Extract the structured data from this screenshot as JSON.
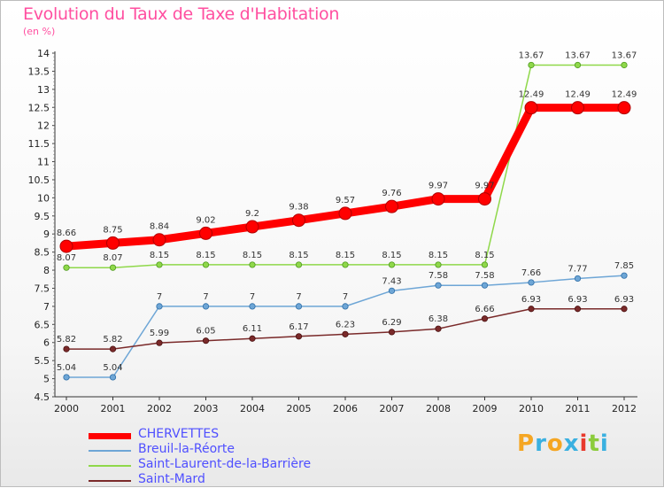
{
  "chart_data": {
    "type": "line",
    "title": "Evolution du Taux de Taxe d'Habitation",
    "subtitle": "(en %)",
    "x": [
      "2000",
      "2001",
      "2002",
      "2003",
      "2004",
      "2005",
      "2006",
      "2007",
      "2008",
      "2009",
      "2010",
      "2011",
      "2012"
    ],
    "ylim": [
      4.5,
      14
    ],
    "yticks": [
      "4.5",
      "5",
      "5.5",
      "6",
      "6.5",
      "7",
      "7.5",
      "8",
      "8.5",
      "9",
      "9.5",
      "10",
      "10.5",
      "11",
      "11.5",
      "12",
      "12.5",
      "13",
      "13.5",
      "14"
    ],
    "grid": false,
    "legend_position": "bottom-left",
    "series": [
      {
        "name": "CHERVETTES",
        "color": "#ff0000",
        "values": [
          8.66,
          8.75,
          8.84,
          9.02,
          9.2,
          9.38,
          9.57,
          9.76,
          9.97,
          9.97,
          12.49,
          12.49,
          12.49
        ],
        "labels": [
          "8.66",
          "8.75",
          "8.84",
          "9.02",
          "9.2",
          "9.38",
          "9.57",
          "9.76",
          "9.97",
          "9.97",
          "12.49",
          "12.49",
          "12.49"
        ]
      },
      {
        "name": "Breuil-la-Réorte",
        "color": "#6ea6d6",
        "values": [
          5.04,
          5.04,
          7,
          7,
          7,
          7,
          7,
          7.43,
          7.58,
          7.58,
          7.66,
          7.77,
          7.85
        ],
        "labels": [
          "5.04",
          "5.04",
          "7",
          "7",
          "7",
          "7",
          "7",
          "7.43",
          "7.58",
          "7.58",
          "7.66",
          "7.77",
          "7.85"
        ]
      },
      {
        "name": "Saint-Laurent-de-la-Barrière",
        "color": "#8fd84a",
        "values": [
          8.07,
          8.07,
          8.15,
          8.15,
          8.15,
          8.15,
          8.15,
          8.15,
          8.15,
          8.15,
          13.67,
          13.67,
          13.67
        ],
        "labels": [
          "8.07",
          "8.07",
          "8.15",
          "8.15",
          "8.15",
          "8.15",
          "8.15",
          "8.15",
          "8.15",
          "8.15",
          "13.67",
          "13.67",
          "13.67"
        ]
      },
      {
        "name": "Saint-Mard",
        "color": "#7a2a2a",
        "values": [
          5.82,
          5.82,
          5.99,
          6.05,
          6.11,
          6.17,
          6.23,
          6.29,
          6.38,
          6.66,
          6.93,
          6.93,
          6.93
        ],
        "labels": [
          "5.82",
          "5.82",
          "5.99",
          "6.05",
          "6.11",
          "6.17",
          "6.23",
          "6.29",
          "6.38",
          "6.66",
          "6.93",
          "6.93",
          "6.93"
        ]
      }
    ]
  },
  "logo": {
    "letters": [
      "P",
      "r",
      "o",
      "x",
      "i",
      "t",
      "i"
    ],
    "colors": [
      "#f5a623",
      "#3ab0e0",
      "#f5a623",
      "#3ab0e0",
      "#e8392c",
      "#8ccc3c",
      "#3ab0e0"
    ]
  }
}
